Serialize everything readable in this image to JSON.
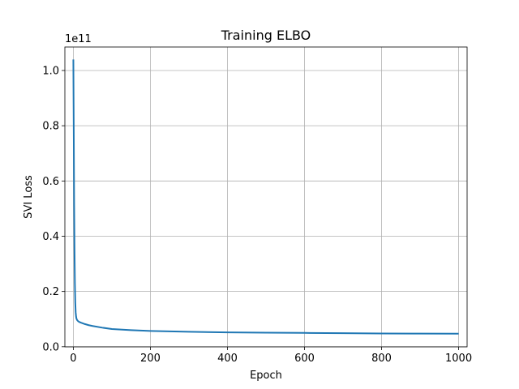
{
  "chart_data": {
    "type": "line",
    "title": "Training ELBO",
    "xlabel": "Epoch",
    "ylabel": "SVI Loss",
    "offset_text": "1e11",
    "xlim": [
      -22,
      1022
    ],
    "ylim": [
      -0.0005,
      1.085
    ],
    "xticks": [
      0,
      200,
      400,
      600,
      800,
      1000
    ],
    "xtick_labels": [
      "0",
      "200",
      "400",
      "600",
      "800",
      "1000"
    ],
    "yticks": [
      0.0,
      0.2,
      0.4,
      0.6,
      0.8,
      1.0
    ],
    "ytick_labels": [
      "0.0",
      "0.2",
      "0.4",
      "0.6",
      "0.8",
      "1.0"
    ],
    "grid": true,
    "series": [
      {
        "color": "#1f77b4",
        "x": [
          0,
          1,
          2,
          3,
          4,
          5,
          6,
          7,
          8,
          10,
          12,
          15,
          20,
          30,
          40,
          50,
          75,
          100,
          150,
          200,
          300,
          400,
          500,
          600,
          700,
          800,
          900,
          1000
        ],
        "y": [
          1.04,
          0.78,
          0.52,
          0.35,
          0.23,
          0.16,
          0.125,
          0.11,
          0.102,
          0.096,
          0.093,
          0.09,
          0.087,
          0.082,
          0.078,
          0.075,
          0.069,
          0.064,
          0.06,
          0.057,
          0.054,
          0.052,
          0.051,
          0.05,
          0.049,
          0.048,
          0.0475,
          0.047
        ]
      }
    ]
  }
}
